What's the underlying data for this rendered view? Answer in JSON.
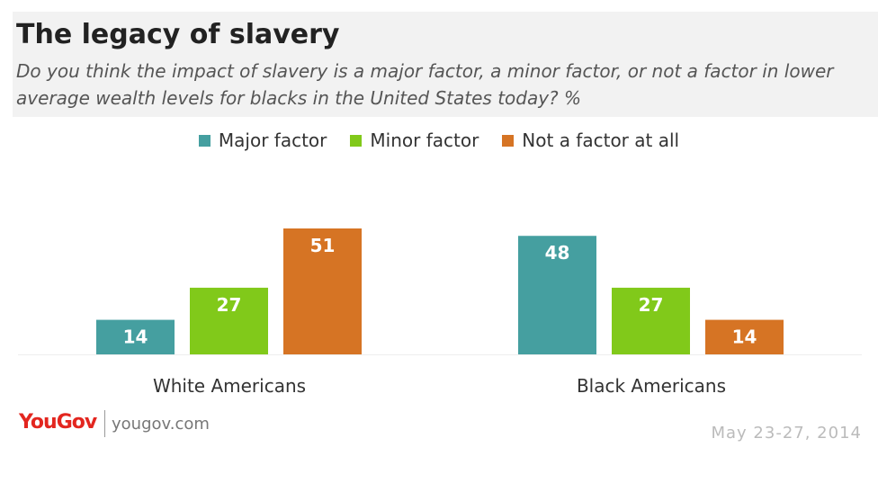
{
  "header": {
    "title": "The legacy of slavery",
    "subtitle": "Do you think the impact of slavery is a major factor, a minor factor, or not a factor in lower average wealth levels for blacks in the United States today? %"
  },
  "chart_data": {
    "type": "bar",
    "categories": [
      "White Americans",
      "Black Americans"
    ],
    "series": [
      {
        "name": "Major factor",
        "color": "#459fa0",
        "values": [
          14,
          48
        ]
      },
      {
        "name": "Minor factor",
        "color": "#81c91a",
        "values": [
          27,
          27
        ]
      },
      {
        "name": "Not a factor at all",
        "color": "#d67424",
        "values": [
          51,
          14
        ]
      }
    ],
    "legend_position": "top-center",
    "grid": false,
    "ylim": [
      0,
      51
    ]
  },
  "footer": {
    "brand": "YouGov",
    "site": "yougov.com",
    "date": "May 23-27, 2014"
  },
  "colors": {
    "header_bg": "#f2f2f2",
    "brand": "#e3261f"
  }
}
